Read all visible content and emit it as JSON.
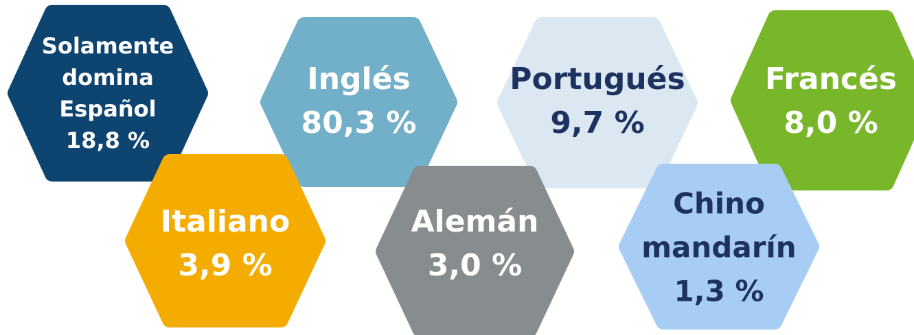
{
  "items": [
    {
      "label_lines": [
        "Solamente",
        "domina",
        "Español"
      ],
      "value": "18,8 %"
    },
    {
      "label_lines": [
        "Inglés"
      ],
      "value": "80,3 %"
    },
    {
      "label_lines": [
        "Portugués"
      ],
      "value": "9,7 %"
    },
    {
      "label_lines": [
        "Francés"
      ],
      "value": "8,0 %"
    },
    {
      "label_lines": [
        "Italiano"
      ],
      "value": "3,9 %"
    },
    {
      "label_lines": [
        "Alemán"
      ],
      "value": "3,0 %"
    },
    {
      "label_lines": [
        "Chino",
        "mandarín"
      ],
      "value": "1,3 %"
    }
  ]
}
